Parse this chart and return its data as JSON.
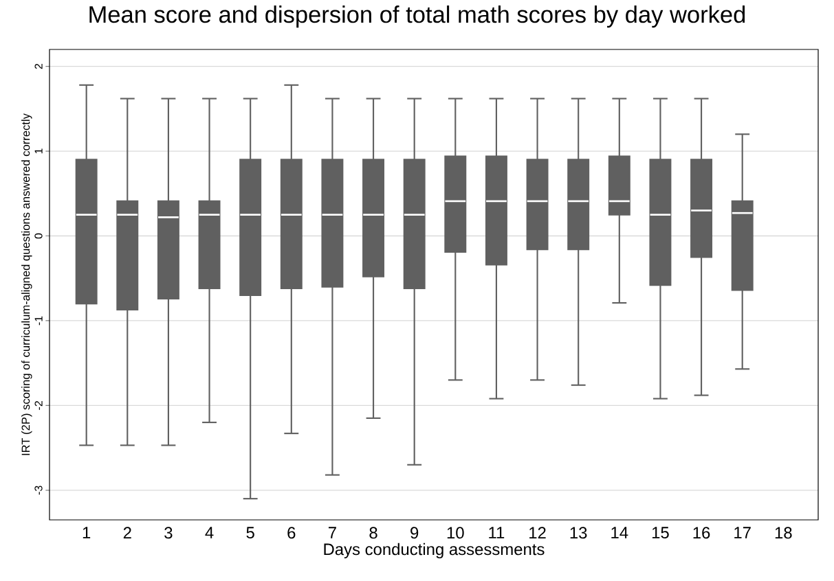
{
  "chart_data": {
    "type": "box",
    "title": "Mean score and dispersion of total math scores by day worked",
    "xlabel": "Days conducting assessments",
    "ylabel": "IRT (2P) scoring of curriculum-aligned questions answered correctly",
    "categories": [
      "1",
      "2",
      "3",
      "4",
      "5",
      "6",
      "7",
      "8",
      "9",
      "10",
      "11",
      "12",
      "13",
      "14",
      "15",
      "16",
      "17",
      "18"
    ],
    "color": "#606060",
    "grid": "y",
    "ylim": [
      -3.35,
      2.2
    ],
    "yticks": [
      -3,
      -2,
      -1,
      0,
      1,
      2
    ],
    "boxes": [
      {
        "low": -2.47,
        "q1": -0.8,
        "median": 0.25,
        "q3": 0.9,
        "high": 1.78
      },
      {
        "low": -2.47,
        "q1": -0.87,
        "median": 0.25,
        "q3": 0.41,
        "high": 1.62
      },
      {
        "low": -2.47,
        "q1": -0.74,
        "median": 0.22,
        "q3": 0.41,
        "high": 1.62
      },
      {
        "low": -2.2,
        "q1": -0.62,
        "median": 0.25,
        "q3": 0.41,
        "high": 1.62
      },
      {
        "low": -3.1,
        "q1": -0.7,
        "median": 0.25,
        "q3": 0.9,
        "high": 1.62
      },
      {
        "low": -2.33,
        "q1": -0.62,
        "median": 0.25,
        "q3": 0.9,
        "high": 1.78
      },
      {
        "low": -2.82,
        "q1": -0.6,
        "median": 0.25,
        "q3": 0.9,
        "high": 1.62
      },
      {
        "low": -2.15,
        "q1": -0.48,
        "median": 0.25,
        "q3": 0.9,
        "high": 1.62
      },
      {
        "low": -2.7,
        "q1": -0.62,
        "median": 0.25,
        "q3": 0.9,
        "high": 1.62
      },
      {
        "low": -1.7,
        "q1": -0.19,
        "median": 0.41,
        "q3": 0.94,
        "high": 1.62
      },
      {
        "low": -1.92,
        "q1": -0.34,
        "median": 0.41,
        "q3": 0.94,
        "high": 1.62
      },
      {
        "low": -1.7,
        "q1": -0.16,
        "median": 0.41,
        "q3": 0.9,
        "high": 1.62
      },
      {
        "low": -1.76,
        "q1": -0.16,
        "median": 0.41,
        "q3": 0.9,
        "high": 1.62
      },
      {
        "low": -0.79,
        "q1": 0.25,
        "median": 0.41,
        "q3": 0.94,
        "high": 1.62
      },
      {
        "low": -1.92,
        "q1": -0.58,
        "median": 0.25,
        "q3": 0.9,
        "high": 1.62
      },
      {
        "low": -1.88,
        "q1": -0.25,
        "median": 0.3,
        "q3": 0.9,
        "high": 1.62
      },
      {
        "low": -1.57,
        "q1": -0.64,
        "median": 0.27,
        "q3": 0.41,
        "high": 1.2
      },
      null
    ]
  }
}
